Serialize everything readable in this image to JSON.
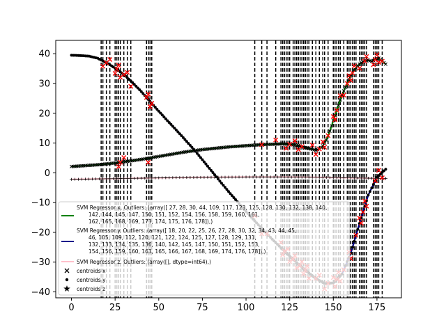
{
  "chart_data": {
    "type": "line",
    "title": "",
    "xlabel": "",
    "ylabel": "",
    "xlim": [
      -9,
      189
    ],
    "ylim": [
      -42,
      44.5
    ],
    "xticks": [
      0,
      25,
      50,
      75,
      100,
      125,
      150,
      175
    ],
    "yticks": [
      -40,
      -30,
      -20,
      -10,
      0,
      10,
      20,
      30,
      40
    ],
    "grid": false,
    "legend_position": "lower-left",
    "colors": {
      "x": "#008000",
      "y": "#00008b",
      "z": "#ffc0cb",
      "outlier": "#ff0000",
      "outlier_line": "#000000"
    },
    "outlier_lines": [
      17,
      18,
      20,
      22,
      25,
      26,
      27,
      28,
      30,
      32,
      34,
      43,
      44,
      45,
      46,
      105,
      109,
      112,
      117,
      120,
      121,
      122,
      123,
      124,
      125,
      127,
      128,
      129,
      130,
      131,
      132,
      133,
      134,
      135,
      136,
      138,
      140,
      142,
      144,
      145,
      147,
      150,
      151,
      152,
      153,
      154,
      156,
      158,
      159,
      160,
      161,
      162,
      163,
      165,
      166,
      167,
      168,
      169,
      173,
      174,
      175,
      176,
      178
    ],
    "series": [
      {
        "name": "SVM Regressor x. Outliers: (array([ 27,  28,  30,  44, 109, 117, 123, 125, 128, 130, 132, 138, 140,\n       142, 144, 145, 147, 150, 151, 152, 154, 156, 158, 159, 160, 161,\n       162, 165, 168, 169, 173, 174, 175, 176, 178]),)",
        "x": [
          0,
          5,
          10,
          15,
          20,
          25,
          30,
          35,
          40,
          45,
          50,
          55,
          60,
          65,
          70,
          75,
          80,
          85,
          90,
          95,
          100,
          105,
          110,
          115,
          120,
          125,
          130,
          135,
          140,
          142,
          144,
          146,
          148,
          150,
          152,
          154,
          156,
          158,
          160,
          162,
          164,
          166,
          168,
          170,
          172,
          174,
          176,
          178,
          180
        ],
        "values": [
          2.1,
          2.3,
          2.5,
          2.7,
          3.0,
          3.3,
          3.7,
          4.1,
          4.5,
          5.0,
          5.5,
          6.0,
          6.5,
          7.0,
          7.4,
          7.8,
          8.1,
          8.4,
          8.7,
          8.9,
          9.1,
          9.3,
          9.5,
          9.6,
          9.7,
          9.6,
          9.2,
          8.3,
          7.6,
          8.0,
          9.0,
          11.0,
          14.0,
          17.5,
          21.0,
          24.5,
          27.5,
          30.0,
          32.5,
          34.5,
          36.0,
          37.0,
          37.5,
          37.8,
          37.5,
          38.0,
          38.5,
          37.5,
          36.5
        ]
      },
      {
        "name": "SVM Regressor y. Outliers: (array([ 18,  20,  22,  25,  26,  27,  28,  30,  32,  34,  43,  44,  45,\n        46, 105, 109, 112, 120, 121, 122, 124, 125, 127, 128, 129, 131,\n       132, 133, 134, 135, 136, 140, 142, 145, 147, 150, 151, 152, 153,\n       154, 156, 159, 160, 163, 165, 166, 167, 168, 169, 174, 176, 178]),)",
        "x": [
          0,
          5,
          10,
          15,
          20,
          25,
          30,
          35,
          40,
          45,
          50,
          55,
          60,
          65,
          70,
          75,
          80,
          85,
          90,
          95,
          100,
          105,
          110,
          115,
          120,
          125,
          130,
          135,
          140,
          145,
          150,
          155,
          160,
          165,
          170,
          175,
          180
        ],
        "values": [
          39.5,
          39.4,
          39.2,
          38.5,
          37.0,
          35.2,
          33.0,
          30.3,
          27.3,
          24.0,
          20.7,
          17.5,
          14.4,
          11.2,
          7.9,
          4.4,
          0.8,
          -2.8,
          -6.3,
          -9.7,
          -13.0,
          -16.2,
          -19.3,
          -22.3,
          -25.2,
          -28.0,
          -30.7,
          -33.2,
          -35.5,
          -37.2,
          -37.0,
          -34.0,
          -27.0,
          -17.0,
          -7.5,
          -1.5,
          1.2
        ]
      },
      {
        "name": "SVM Regressor z. Outliers: (array([], dtype=int64),)",
        "x": [
          0,
          20,
          40,
          60,
          80,
          100,
          120,
          140,
          160,
          180
        ],
        "values": [
          -2.2,
          -2.0,
          -1.8,
          -1.6,
          -1.5,
          -1.4,
          -1.4,
          -1.5,
          -1.7,
          -1.9
        ]
      }
    ],
    "legend": {
      "x_label": "SVM Regressor x. Outliers: (array([ 27,  28,  30,  44, 109, 117, 123, 125, 128, 130, 132, 138, 140,",
      "x_label_2": "142, 144, 145, 147, 150, 151, 152, 154, 156, 158, 159, 160, 161,",
      "x_label_3": "162, 165, 168, 169, 173, 174, 175, 176, 178]),)",
      "y_label": "SVM Regressor y. Outliers: (array([ 18,  20,  22,  25,  26,  27,  28,  30,  32,  34,  43,  44,  45,",
      "y_label_2": "46, 105, 109, 112, 120, 121, 122, 124, 125, 127, 128, 129, 131,",
      "y_label_3": "132, 133, 134, 135, 136, 140, 142, 145, 147, 150, 151, 152, 153,",
      "y_label_4": "154, 156, 159, 160, 163, 165, 166, 167, 168, 169, 174, 176, 178]),)",
      "z_label": "SVM Regressor z. Outliers: (array([], dtype=int64),)",
      "cx_label": "centroids x",
      "cy_label": "centroids y",
      "cz_label": "centroids z"
    }
  }
}
